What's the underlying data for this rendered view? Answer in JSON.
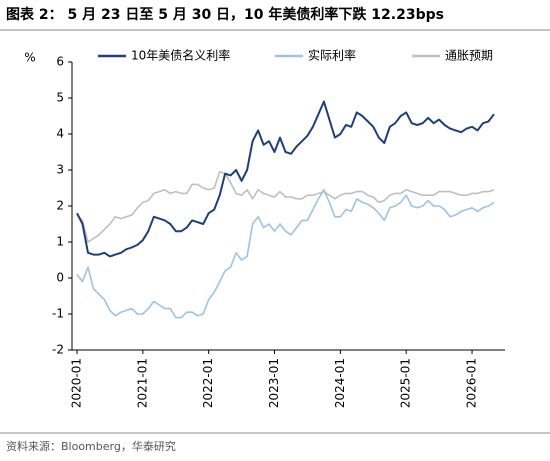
{
  "chart_data": {
    "type": "line",
    "title": "图表 2：  5 月 23 日至 5 月 30 日，10 年美债利率下跌 12.23bps",
    "source": "资料来源：Bloomberg，华泰研究",
    "y_unit": "%",
    "x": [
      "2020-01",
      "2020-02",
      "2020-03",
      "2020-04",
      "2020-05",
      "2020-06",
      "2020-07",
      "2020-08",
      "2020-09",
      "2020-10",
      "2020-11",
      "2020-12",
      "2021-01",
      "2021-02",
      "2021-03",
      "2021-04",
      "2021-05",
      "2021-06",
      "2021-07",
      "2021-08",
      "2021-09",
      "2021-10",
      "2021-11",
      "2021-12",
      "2022-01",
      "2022-02",
      "2022-03",
      "2022-04",
      "2022-05",
      "2022-06",
      "2022-07",
      "2022-08",
      "2022-09",
      "2022-10",
      "2022-11",
      "2022-12",
      "2023-01",
      "2023-02",
      "2023-03",
      "2023-04",
      "2023-05",
      "2023-06",
      "2023-07",
      "2023-08",
      "2023-09",
      "2023-10",
      "2023-11",
      "2023-12",
      "2024-01",
      "2024-02",
      "2024-03",
      "2024-04",
      "2024-05",
      "2024-06",
      "2024-07",
      "2024-08",
      "2024-09",
      "2024-10",
      "2024-11",
      "2024-12",
      "2025-01",
      "2025-02",
      "2025-03",
      "2025-04",
      "2025-05",
      "2025-06",
      "2025-07",
      "2025-08",
      "2025-09",
      "2025-10",
      "2025-11",
      "2025-12",
      "2026-01",
      "2026-02",
      "2026-03",
      "2026-04",
      "2026-05"
    ],
    "xticks": [
      "2020-01",
      "2021-01",
      "2022-01",
      "2023-01",
      "2024-01",
      "2025-01",
      "2026-01"
    ],
    "ylim": [
      -2,
      6
    ],
    "yticks": [
      -2,
      -1,
      0,
      1,
      2,
      3,
      4,
      5,
      6
    ],
    "series": [
      {
        "name": "10年美债名义利率",
        "color": "#1f3f7a",
        "values": [
          1.8,
          1.5,
          0.7,
          0.65,
          0.65,
          0.7,
          0.6,
          0.65,
          0.7,
          0.8,
          0.85,
          0.92,
          1.05,
          1.3,
          1.7,
          1.65,
          1.6,
          1.5,
          1.3,
          1.3,
          1.4,
          1.6,
          1.55,
          1.5,
          1.8,
          1.9,
          2.3,
          2.9,
          2.85,
          3.0,
          2.7,
          3.0,
          3.8,
          4.1,
          3.7,
          3.8,
          3.5,
          3.9,
          3.5,
          3.45,
          3.65,
          3.8,
          3.95,
          4.2,
          4.55,
          4.9,
          4.4,
          3.9,
          4.0,
          4.25,
          4.2,
          4.6,
          4.5,
          4.35,
          4.2,
          3.9,
          3.75,
          4.2,
          4.3,
          4.5,
          4.6,
          4.3,
          4.25,
          4.3,
          4.45,
          4.3,
          4.4,
          4.25,
          4.15,
          4.1,
          4.05,
          4.15,
          4.2,
          4.1,
          4.3,
          4.35,
          4.55
        ]
      },
      {
        "name": "实际利率",
        "color": "#9cc3e6",
        "values": [
          0.1,
          -0.1,
          0.3,
          -0.3,
          -0.45,
          -0.6,
          -0.9,
          -1.05,
          -0.95,
          -0.9,
          -0.85,
          -1.0,
          -1.0,
          -0.85,
          -0.65,
          -0.75,
          -0.85,
          -0.85,
          -1.1,
          -1.1,
          -0.95,
          -0.95,
          -1.05,
          -1.0,
          -0.6,
          -0.4,
          -0.1,
          0.2,
          0.3,
          0.7,
          0.5,
          0.6,
          1.5,
          1.7,
          1.4,
          1.5,
          1.3,
          1.5,
          1.3,
          1.2,
          1.4,
          1.6,
          1.6,
          1.9,
          2.2,
          2.45,
          2.1,
          1.7,
          1.7,
          1.9,
          1.85,
          2.2,
          2.1,
          2.05,
          1.95,
          1.8,
          1.6,
          1.95,
          2.0,
          2.1,
          2.3,
          2.0,
          1.95,
          2.0,
          2.15,
          2.0,
          2.0,
          1.9,
          1.7,
          1.75,
          1.85,
          1.9,
          1.95,
          1.85,
          1.95,
          2.0,
          2.1
        ]
      },
      {
        "name": "通胀预期",
        "color": "#bfbfbf",
        "values": [
          1.75,
          1.6,
          1.0,
          1.1,
          1.2,
          1.35,
          1.5,
          1.7,
          1.65,
          1.7,
          1.75,
          1.95,
          2.1,
          2.15,
          2.35,
          2.4,
          2.45,
          2.35,
          2.4,
          2.35,
          2.35,
          2.6,
          2.6,
          2.5,
          2.45,
          2.5,
          2.95,
          2.9,
          2.65,
          2.35,
          2.3,
          2.45,
          2.2,
          2.45,
          2.35,
          2.3,
          2.25,
          2.4,
          2.25,
          2.25,
          2.2,
          2.2,
          2.3,
          2.3,
          2.35,
          2.4,
          2.3,
          2.2,
          2.3,
          2.35,
          2.35,
          2.4,
          2.4,
          2.3,
          2.25,
          2.1,
          2.15,
          2.3,
          2.35,
          2.35,
          2.45,
          2.4,
          2.35,
          2.3,
          2.3,
          2.3,
          2.4,
          2.4,
          2.4,
          2.35,
          2.3,
          2.3,
          2.35,
          2.35,
          2.4,
          2.4,
          2.45
        ]
      }
    ]
  }
}
